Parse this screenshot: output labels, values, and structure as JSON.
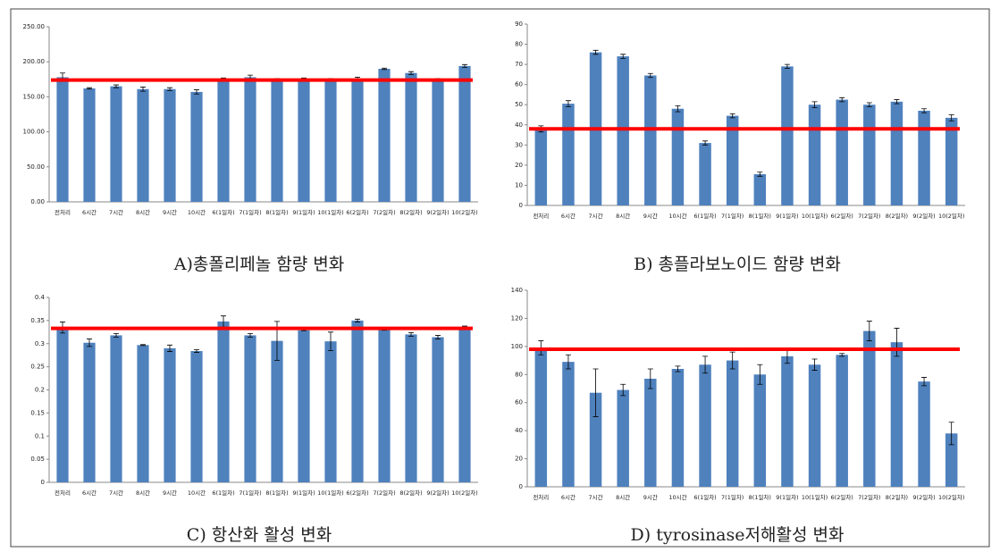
{
  "chart_data": [
    {
      "type": "bar",
      "title": "A)총폴리페놀 함량 변화",
      "categories": [
        "전처리",
        "6시간",
        "7시간",
        "8시간",
        "9시간",
        "10시간",
        "6(1일차)",
        "7(1일차)",
        "8(1일차)",
        "9(1일차)",
        "10(1일차)",
        "6(2일차)",
        "7(2일차)",
        "8(2일차)",
        "9(2일차)",
        "10(2일차)"
      ],
      "values": [
        178,
        162,
        165,
        161,
        161,
        157,
        175,
        178,
        175,
        175,
        175,
        175,
        190,
        184,
        175,
        194
      ],
      "errors": [
        6,
        1,
        2,
        3,
        2,
        3,
        2,
        3,
        1,
        2,
        1,
        3,
        1,
        2,
        1,
        2
      ],
      "color": "#4f81bd",
      "reference_line": 174,
      "reference_color": "#ff0000",
      "ylim": [
        0,
        250
      ],
      "yticks": [
        {
          "value": 0,
          "label": "0.00"
        },
        {
          "value": 50,
          "label": "50.00"
        },
        {
          "value": 100,
          "label": "100.00"
        },
        {
          "value": 150,
          "label": "150.00"
        },
        {
          "value": 200,
          "label": "200.00"
        },
        {
          "value": 250,
          "label": "250.00"
        }
      ]
    },
    {
      "type": "bar",
      "title": "B) 총플라보노이드 함량 변화",
      "categories": [
        "전처리",
        "6시간",
        "7시간",
        "8시간",
        "9시간",
        "10시간",
        "6(1일차)",
        "7(1일차)",
        "8(1일차)",
        "9(1일차)",
        "10(1일차)",
        "6(2일차)",
        "7(2일차)",
        "8(2일차)",
        "9(2일차)",
        "10(2일차)"
      ],
      "values": [
        38,
        50.5,
        76,
        74,
        64.5,
        48,
        31,
        44.5,
        15.5,
        69,
        50,
        52.5,
        50,
        51.5,
        47,
        43.5
      ],
      "errors": [
        1.5,
        1.5,
        1,
        1,
        1,
        1.5,
        1,
        1,
        1,
        1,
        1.5,
        1,
        1,
        1,
        1,
        1.5
      ],
      "color": "#4f81bd",
      "reference_line": 38,
      "reference_color": "#ff0000",
      "ylim": [
        0,
        90
      ],
      "yticks": [
        0,
        10,
        20,
        30,
        40,
        50,
        60,
        70,
        80,
        90
      ]
    },
    {
      "type": "bar",
      "title": "C) 항산화 활성 변화",
      "categories": [
        "전처리",
        "6시간",
        "7시간",
        "8시간",
        "9시간",
        "10시간",
        "6(1일차)",
        "7(1일차)",
        "8(1일차)",
        "9(1일차)",
        "10(1일차)",
        "6(2일차)",
        "7(2일차)",
        "8(2일차)",
        "9(2일차)",
        "10(2일차)"
      ],
      "values": [
        0.335,
        0.302,
        0.318,
        0.297,
        0.29,
        0.284,
        0.348,
        0.318,
        0.306,
        0.329,
        0.305,
        0.35,
        0.33,
        0.32,
        0.314,
        0.336
      ],
      "errors": [
        0.012,
        0.008,
        0.004,
        0.001,
        0.007,
        0.003,
        0.012,
        0.004,
        0.042,
        0.001,
        0.02,
        0.003,
        0.001,
        0.004,
        0.004,
        0.002
      ],
      "color": "#4f81bd",
      "reference_line": 0.333,
      "reference_color": "#ff0000",
      "ylim": [
        0,
        0.4
      ],
      "yticks": [
        0,
        0.05,
        0.1,
        0.15,
        0.2,
        0.25,
        0.3,
        0.35,
        0.4
      ]
    },
    {
      "type": "bar",
      "title": "D) tyrosinase저해활성 변화",
      "categories": [
        "전처리",
        "6시간",
        "7시간",
        "8시간",
        "9시간",
        "10시간",
        "6(1일차)",
        "7(1일차)",
        "8(1일차)",
        "9(1일차)",
        "10(1일차)",
        "6(2일차)",
        "7(2일차)",
        "8(2일차)",
        "9(2일차)",
        "10(2일차)"
      ],
      "values": [
        99,
        89,
        67,
        69,
        77,
        84,
        87,
        90,
        80,
        93,
        87,
        94,
        111,
        103,
        75,
        38
      ],
      "errors": [
        5,
        5,
        17,
        4,
        7,
        2,
        6,
        6,
        7,
        5,
        4,
        1,
        7,
        10,
        3,
        8
      ],
      "color": "#4f81bd",
      "reference_line": 98,
      "reference_color": "#ff0000",
      "ylim": [
        0,
        140
      ],
      "yticks": [
        0,
        20,
        40,
        60,
        80,
        100,
        120,
        140
      ]
    }
  ]
}
